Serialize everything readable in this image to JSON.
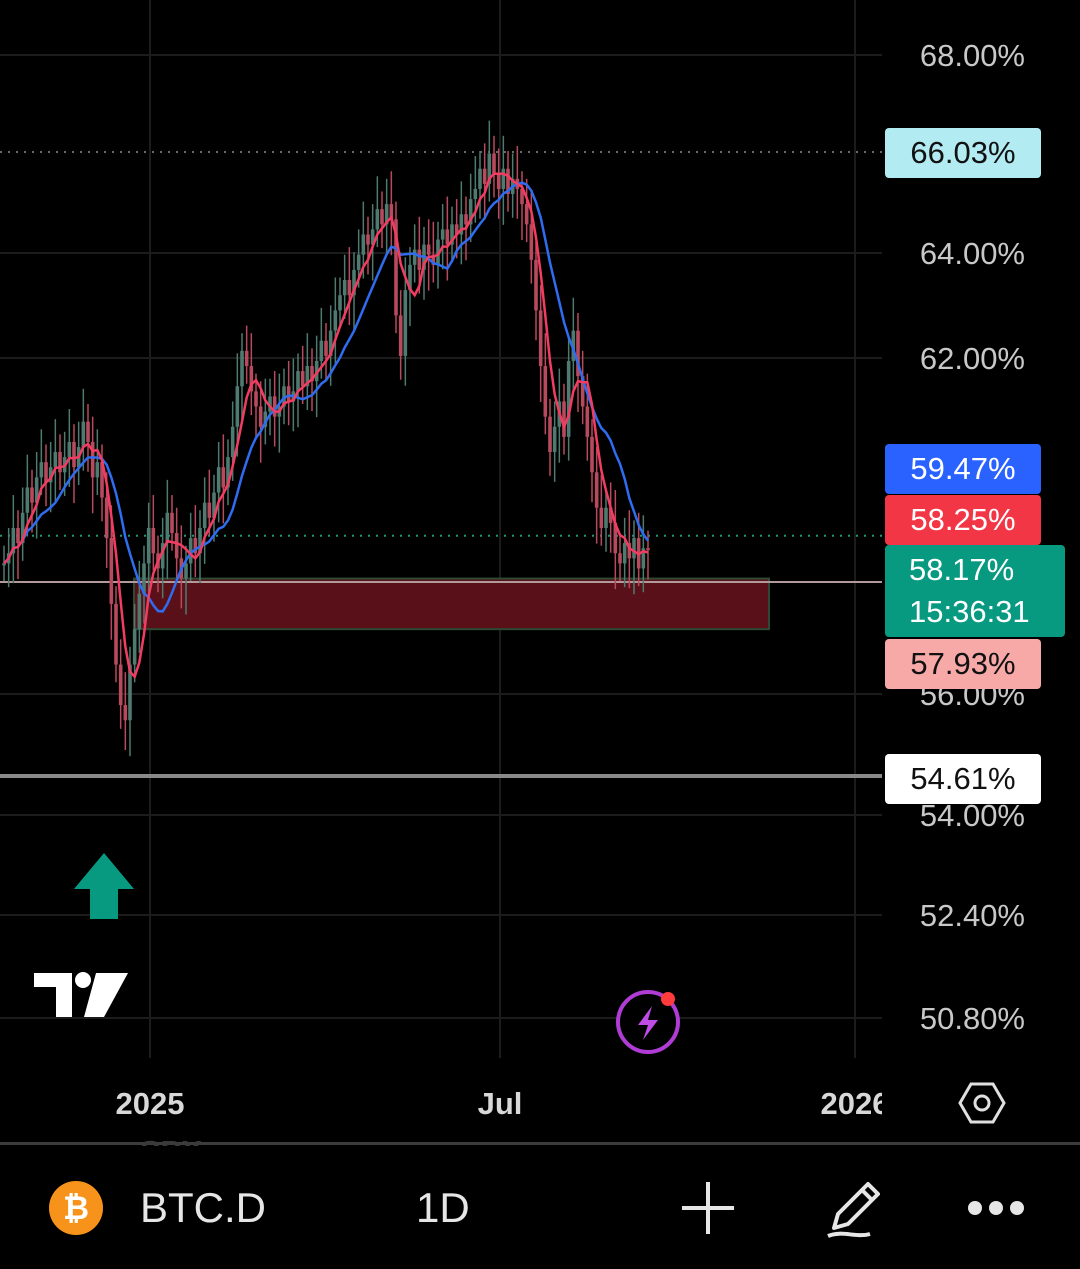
{
  "colors": {
    "background": "#000000",
    "grid": "#1c1c1c",
    "candle_up": "#4e7a70",
    "candle_down": "#b84a5e",
    "ma_fast": "#f23c62",
    "ma_slow": "#2f6cf0",
    "zone_fill": "#5a1018",
    "zone_border": "#2c4a34",
    "support_line": "#8a8a8a",
    "current_line": "#1a9b7c",
    "accent_green": "#089981"
  },
  "chart_data": {
    "type": "candlestick",
    "symbol": "BTC.D",
    "interval": "1D",
    "y_unit": "%",
    "y_ticks": [
      "68.00%",
      "64.00%",
      "62.00%",
      "56.00%",
      "54.00%",
      "52.40%",
      "50.80%"
    ],
    "x_ticks": [
      "2025",
      "Jul",
      "2026"
    ],
    "close_series": [
      57.9,
      58.1,
      58.6,
      58.3,
      58.9,
      59.4,
      59.1,
      59.6,
      59.9,
      59.5,
      59.8,
      60.1,
      59.7,
      60.0,
      60.3,
      59.8,
      60.2,
      60.7,
      60.3,
      59.6,
      59.9,
      59.2,
      58.4,
      57.1,
      55.9,
      55.1,
      54.8,
      55.9,
      56.6,
      57.3,
      57.9,
      58.6,
      58.1,
      57.8,
      58.3,
      58.9,
      58.5,
      58.0,
      57.6,
      57.9,
      58.4,
      58.1,
      58.6,
      59.1,
      58.8,
      59.3,
      59.8,
      59.4,
      60.0,
      60.6,
      61.4,
      62.1,
      61.8,
      61.3,
      61.0,
      60.6,
      60.9,
      61.2,
      60.8,
      61.0,
      61.4,
      61.1,
      61.3,
      61.7,
      61.4,
      61.8,
      61.5,
      61.9,
      62.3,
      62.0,
      62.5,
      62.9,
      63.2,
      63.5,
      63.2,
      63.7,
      64.0,
      64.4,
      64.2,
      64.5,
      64.9,
      64.6,
      65.0,
      64.7,
      62.8,
      62.0,
      63.3,
      63.8,
      64.1,
      63.7,
      64.2,
      64.0,
      63.8,
      64.3,
      64.5,
      64.2,
      64.6,
      64.4,
      64.8,
      64.6,
      65.1,
      65.3,
      65.7,
      65.4,
      66.0,
      65.6,
      65.3,
      65.7,
      65.2,
      65.5,
      65.3,
      65.0,
      64.6,
      63.9,
      62.9,
      61.8,
      60.8,
      60.1,
      60.6,
      61.1,
      60.4,
      61.9,
      62.5,
      61.6,
      61.0,
      60.4,
      59.7,
      59.0,
      58.6,
      59.0,
      58.7,
      58.1,
      57.9,
      58.3,
      58.0,
      58.4,
      57.8,
      58.2,
      58.17
    ],
    "ma_fast_last": 58.25,
    "ma_slow_last": 59.47,
    "price_labels": {
      "high": "66.03%",
      "ma_slow": "59.47%",
      "ma_fast": "58.25%",
      "last": "58.17%",
      "countdown": "15:36:31",
      "bid": "57.93%",
      "support": "54.61%"
    },
    "levels": {
      "high": 66.03,
      "last": 58.17,
      "support": 54.61,
      "zone_low": 56.6,
      "zone_high": 57.6
    },
    "zone": {
      "low": 56.6,
      "high": 57.6
    }
  },
  "watermark": {
    "icon": "tradingview-logo-icon"
  },
  "signal": {
    "icon": "up-arrow-icon"
  },
  "toolbar": {
    "coin_icon": "bitcoin-icon",
    "symbol": "BTC.D",
    "interval": "1D",
    "add_icon": "plus-icon",
    "draw_icon": "pencil-icon",
    "more_icon": "more-dots-icon",
    "lightning_icon": "lightning-icon",
    "settings_icon": "settings-hexagon-icon"
  }
}
